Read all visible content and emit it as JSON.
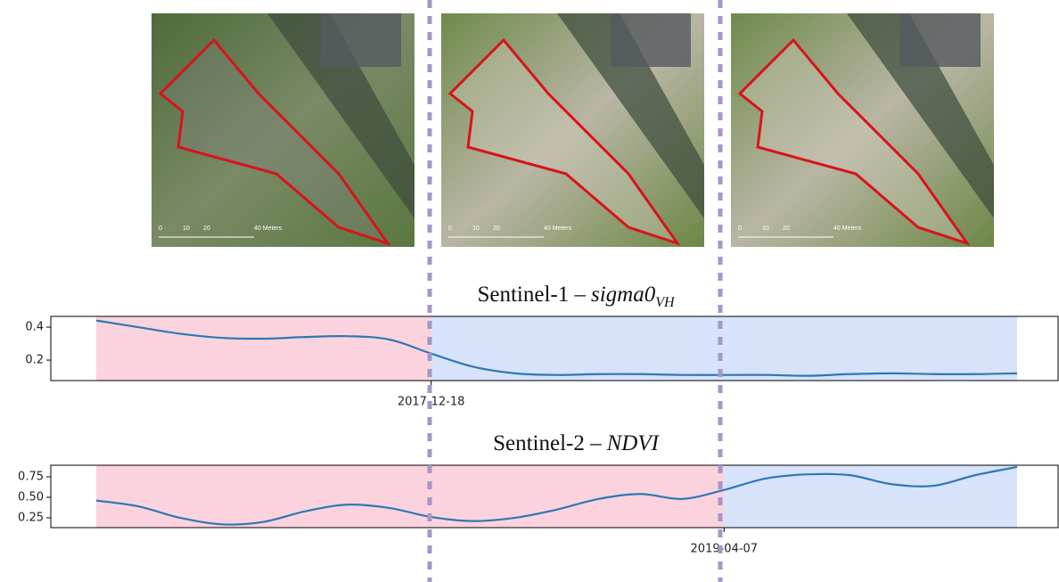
{
  "images": [
    {
      "scale": [
        "0",
        "10",
        "20",
        "40 Meters"
      ]
    },
    {
      "scale": [
        "0",
        "10",
        "20",
        "40 Meters"
      ]
    },
    {
      "scale": [
        "0",
        "10",
        "20",
        "40 Meters"
      ]
    }
  ],
  "chart_data": [
    {
      "type": "line",
      "title": {
        "text": "Sentinel-1 –",
        "italic": "sigma0",
        "sub": "VH"
      },
      "categories": [
        null,
        null,
        null,
        null,
        null,
        null,
        null,
        null,
        "2017-12-18",
        null,
        null,
        null,
        null,
        null,
        null,
        null,
        null,
        null,
        null,
        null,
        null,
        null,
        null
      ],
      "values": [
        0.44,
        0.4,
        0.36,
        0.335,
        0.33,
        0.34,
        0.345,
        0.325,
        0.24,
        0.16,
        0.12,
        0.11,
        0.115,
        0.115,
        0.11,
        0.11,
        0.11,
        0.105,
        0.115,
        0.12,
        0.115,
        0.115,
        0.12
      ],
      "color": "#2f78b3",
      "ylim": [
        0.076,
        0.465
      ],
      "yticks": [
        0.2,
        0.4
      ],
      "regions": [
        {
          "start": 0,
          "end": 8,
          "color": "#fbd3df"
        },
        {
          "start": 8,
          "end": 22,
          "color": "#d6e3fb"
        }
      ]
    },
    {
      "type": "line",
      "title": {
        "text": "Sentinel-2 –",
        "italic": "NDVI"
      },
      "categories": [
        null,
        null,
        null,
        null,
        null,
        null,
        null,
        null,
        null,
        null,
        null,
        null,
        null,
        null,
        null,
        "2019-04-07",
        null,
        null,
        null,
        null,
        null,
        null,
        null
      ],
      "values": [
        0.46,
        0.39,
        0.25,
        0.17,
        0.2,
        0.33,
        0.41,
        0.37,
        0.26,
        0.21,
        0.25,
        0.35,
        0.48,
        0.54,
        0.48,
        0.59,
        0.73,
        0.78,
        0.77,
        0.66,
        0.64,
        0.77,
        0.87
      ],
      "color": "#2f78b3",
      "ylim": [
        0.13,
        0.891
      ],
      "yticks": [
        0.25,
        {
          "value": 0.5,
          "label": "0.50"
        },
        0.75
      ],
      "regions": [
        {
          "start": 0,
          "end": 15,
          "color": "#fbd3df"
        },
        {
          "start": 15,
          "end": 22,
          "color": "#d6e3fb"
        }
      ]
    }
  ]
}
